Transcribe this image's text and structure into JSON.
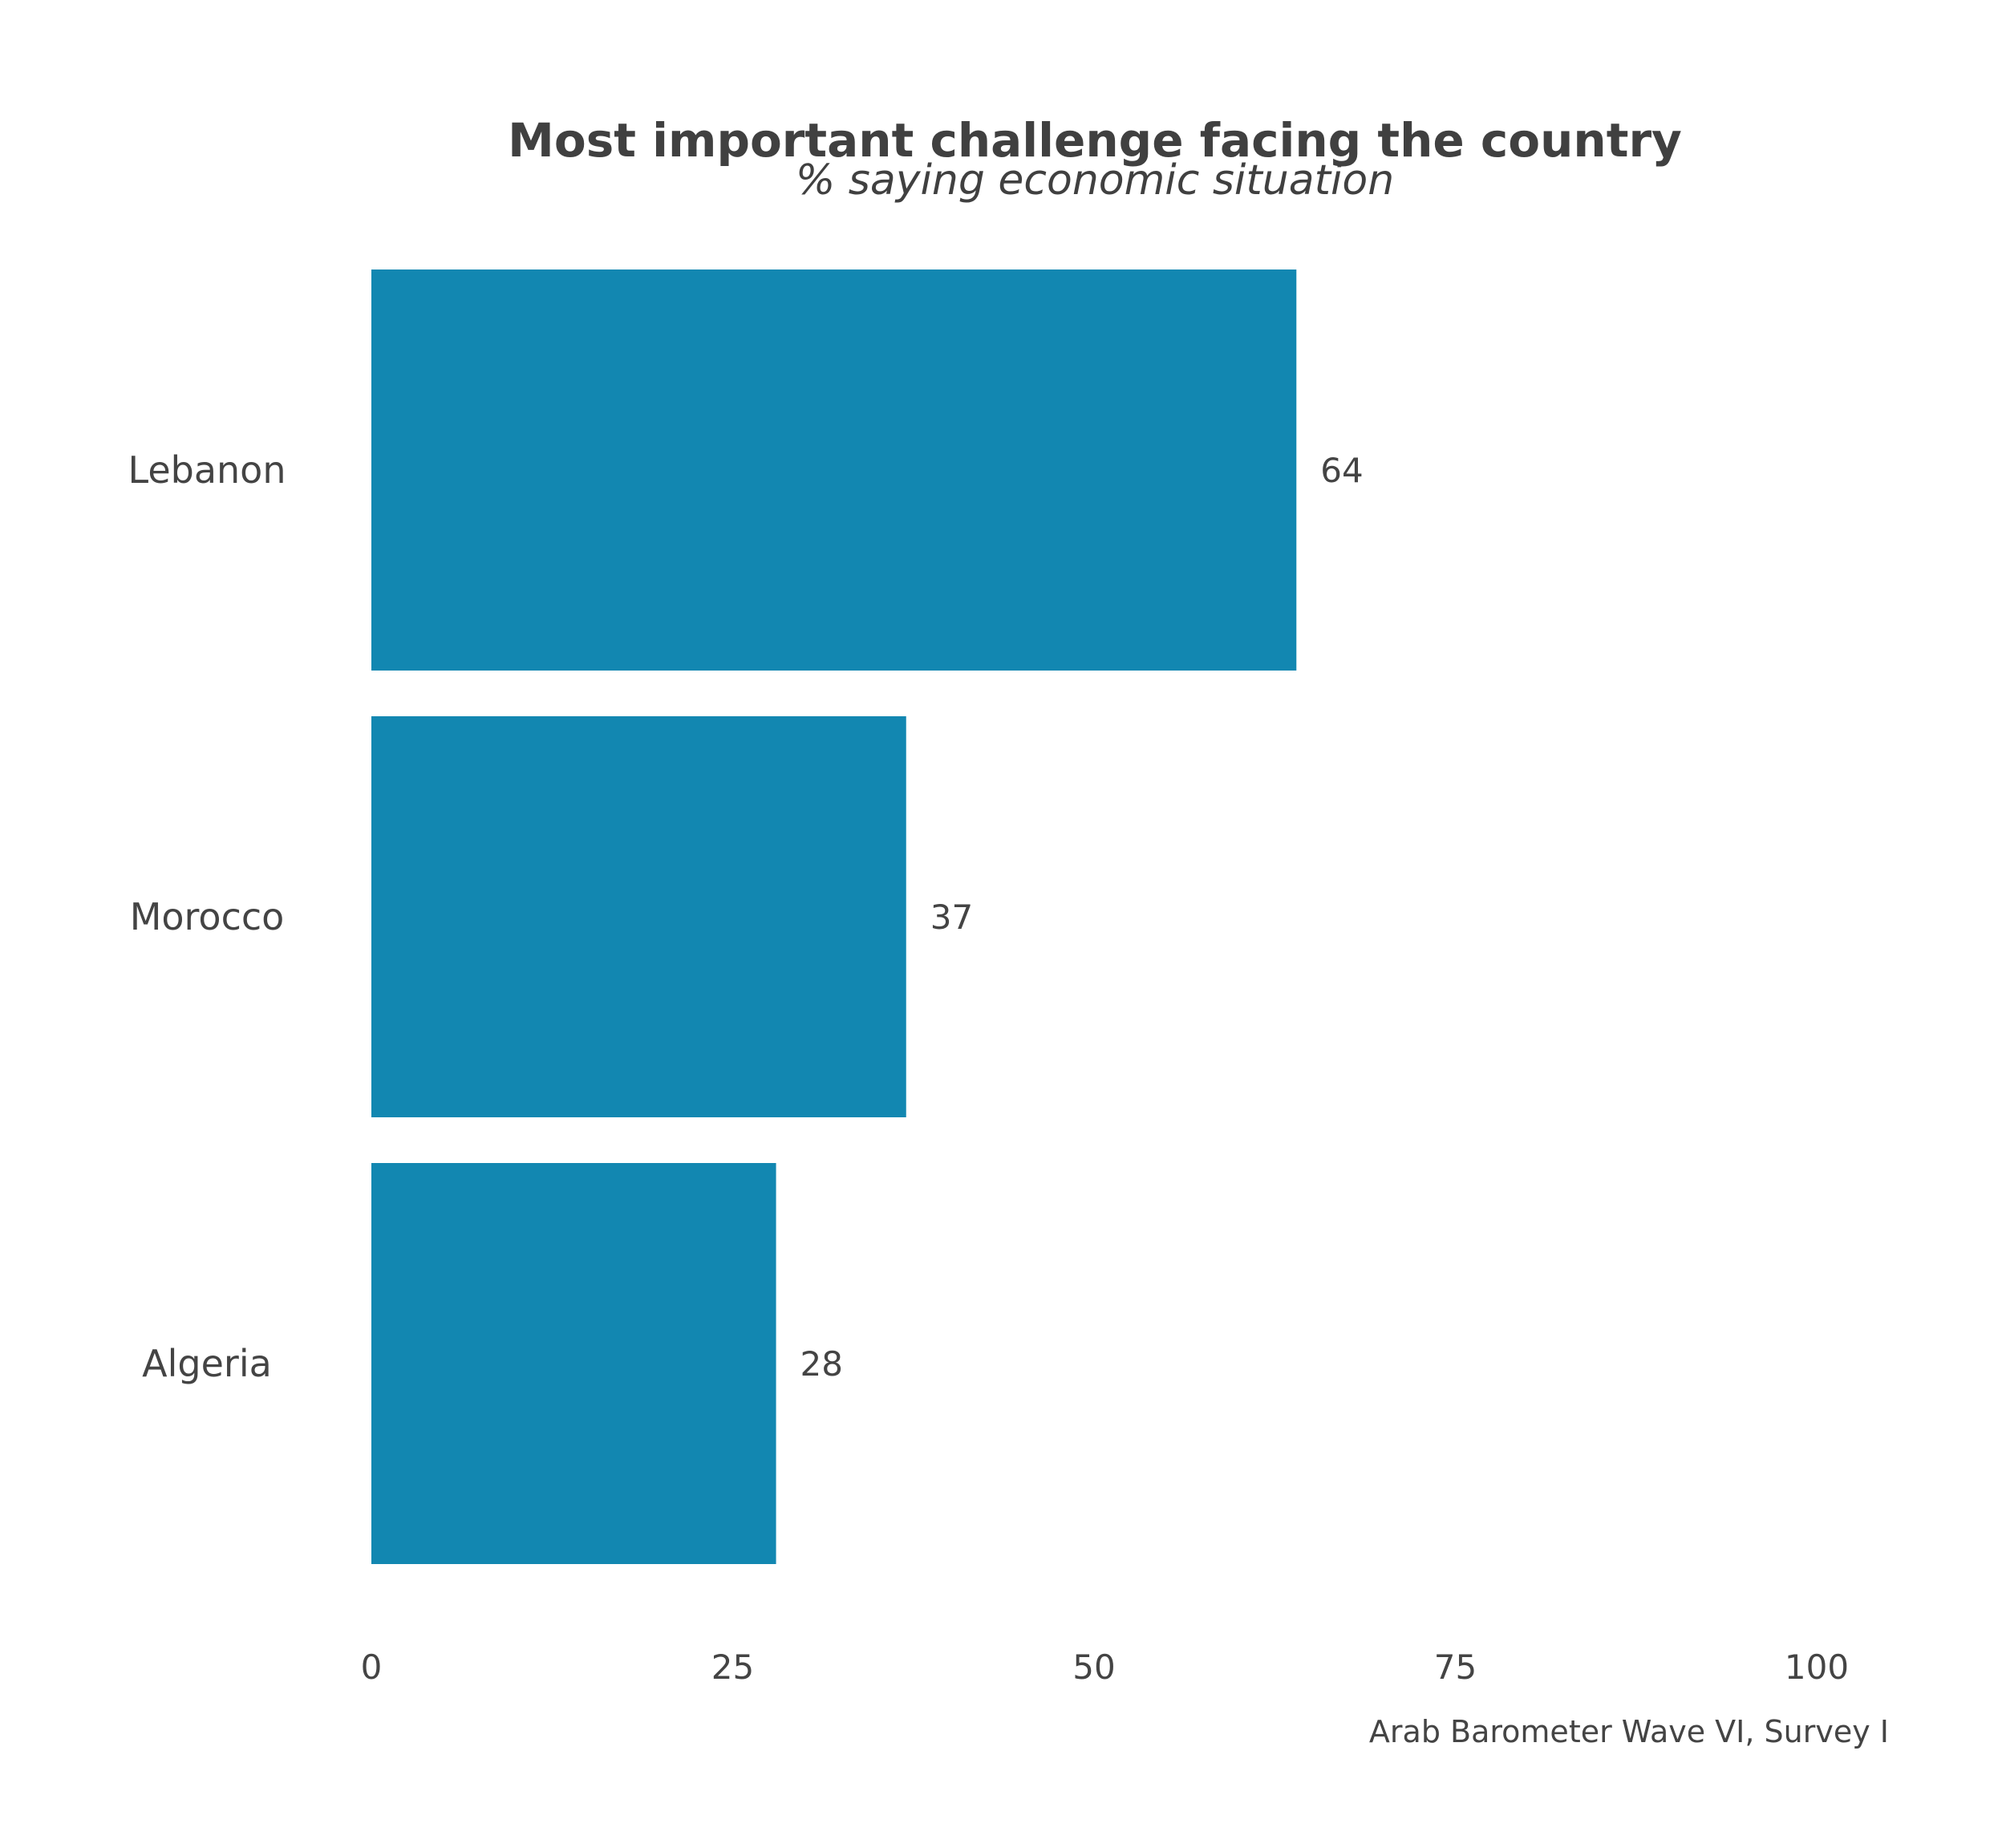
{
  "chart_data": {
    "type": "bar",
    "orientation": "horizontal",
    "title": "Most important challenge facing the country",
    "subtitle": "% saying economic situation",
    "caption": "Arab Barometer Wave VI, Survey I",
    "categories": [
      "Lebanon",
      "Morocco",
      "Algeria"
    ],
    "values": [
      64,
      37,
      28
    ],
    "value_labels": [
      "64",
      "37",
      "28"
    ],
    "xlim": [
      0,
      100
    ],
    "xticks": [
      0,
      25,
      50,
      75,
      100
    ],
    "xtick_labels": [
      "0",
      "25",
      "50",
      "75",
      "100"
    ],
    "xlabel": "",
    "ylabel": "",
    "grid": false,
    "bar_color": "#1287B1"
  }
}
